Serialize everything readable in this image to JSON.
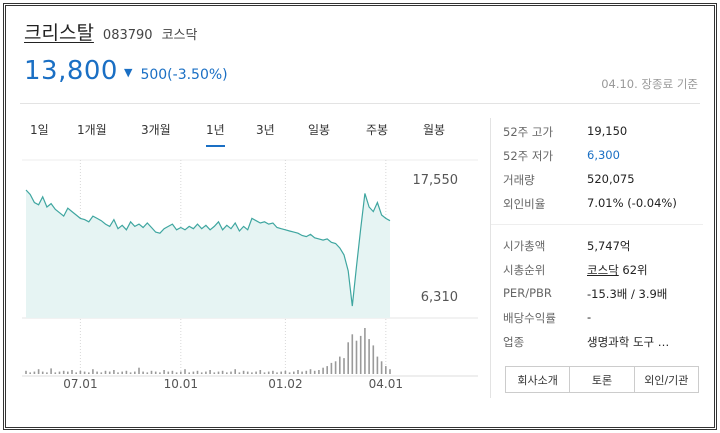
{
  "header": {
    "name": "크리스탈",
    "code": "083790",
    "market": "코스닥",
    "price": "13,800",
    "change": "500(-3.50%)",
    "asof": "04.10. 장종료 기준",
    "direction_color": "#1a6fc4"
  },
  "tabs": [
    {
      "label": "1일"
    },
    {
      "label": "1개월"
    },
    {
      "label": "3개월"
    },
    {
      "label": "1년",
      "active": true
    },
    {
      "label": "3년"
    },
    {
      "label": "일봉"
    },
    {
      "label": "주봉"
    },
    {
      "label": "월봉"
    }
  ],
  "info": {
    "high52_label": "52주 고가",
    "high52": "19,150",
    "low52_label": "52주 저가",
    "low52": "6,300",
    "volume_label": "거래량",
    "volume": "520,075",
    "foreign_label": "외인비율",
    "foreign": "7.01% (-0.04%)",
    "cap_label": "시가총액",
    "cap": "5,747억",
    "rank_label": "시총순위",
    "rank_market": "코스닥",
    "rank": "62위",
    "perpbr_label": "PER/PBR",
    "perpbr": "-15.3배 / 3.9배",
    "dividend_label": "배당수익률",
    "dividend": "-",
    "industry_label": "업종",
    "industry": "생명과학 도구 …"
  },
  "buttons": {
    "company": "회사소개",
    "discussion": "토론",
    "foreign_inst": "외인/기관"
  },
  "chart_data": {
    "type": "area",
    "yticks": [
      "17,550",
      "6,310"
    ],
    "ylim": [
      6310,
      17550
    ],
    "xticks": [
      "07.01",
      "10.01",
      "01.02",
      "04.01"
    ],
    "xtick_index": [
      13,
      37,
      62,
      86
    ],
    "line_color": "#3fa6a0",
    "fill_color": "#e6f4f3",
    "price_series": [
      16500,
      16100,
      15400,
      15200,
      15900,
      15000,
      15300,
      14800,
      14500,
      14200,
      14900,
      14600,
      14300,
      14000,
      13900,
      13700,
      14200,
      14000,
      13800,
      13500,
      13300,
      13900,
      13100,
      13400,
      13000,
      13700,
      13300,
      13500,
      13200,
      13600,
      13200,
      12800,
      12700,
      13100,
      13300,
      13500,
      13000,
      13200,
      13000,
      13300,
      13100,
      13500,
      13100,
      13400,
      13000,
      13300,
      13700,
      13000,
      13400,
      13100,
      13600,
      12900,
      13300,
      13000,
      14000,
      13800,
      13600,
      13700,
      13500,
      13600,
      13200,
      13100,
      13000,
      12900,
      12800,
      12700,
      12500,
      12400,
      12600,
      12300,
      12200,
      12100,
      12200,
      11900,
      11800,
      11400,
      10800,
      9400,
      6300,
      9800,
      13100,
      16200,
      15000,
      14600,
      15400,
      14300,
      14000,
      13800
    ],
    "volume_series": [
      4,
      2,
      3,
      6,
      3,
      2,
      7,
      2,
      3,
      4,
      3,
      5,
      2,
      4,
      3,
      2,
      6,
      3,
      2,
      4,
      3,
      5,
      2,
      3,
      4,
      2,
      3,
      8,
      3,
      2,
      4,
      3,
      2,
      5,
      3,
      4,
      2,
      3,
      6,
      2,
      3,
      4,
      2,
      3,
      5,
      2,
      3,
      4,
      2,
      3,
      6,
      2,
      4,
      3,
      2,
      3,
      5,
      2,
      3,
      4,
      2,
      3,
      4,
      2,
      3,
      5,
      3,
      4,
      6,
      4,
      5,
      8,
      10,
      14,
      16,
      22,
      20,
      40,
      50,
      42,
      48,
      58,
      44,
      36,
      22,
      16,
      10,
      6
    ]
  }
}
